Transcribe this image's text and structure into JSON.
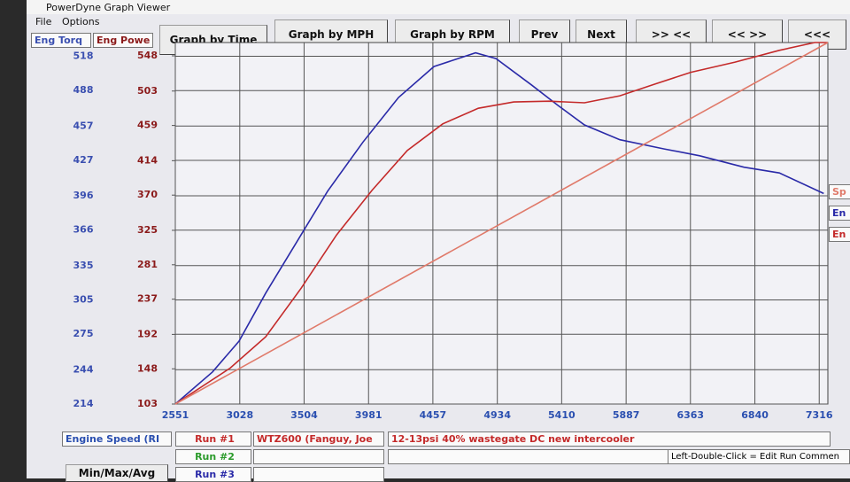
{
  "window": {
    "title": "PowerDyne Graph Viewer",
    "menu": [
      "File",
      "Options"
    ]
  },
  "tabs": [
    "Eng Torq",
    "Eng Powe"
  ],
  "buttons": [
    "Graph by Time",
    "Graph by MPH",
    "Graph by RPM",
    "Prev",
    "Next",
    ">> <<",
    "<< >>",
    "<<<"
  ],
  "side_legend": [
    "Sp",
    "En",
    "En"
  ],
  "footer": {
    "x_channel": "Engine Speed (RI",
    "runs": [
      "Run #1",
      "Run #2",
      "Run #3"
    ],
    "run1_name": "WTZ600 (Fanguy, Joe",
    "run1_comment": "12-13psi 40% wastegate DC new intercooler",
    "stats_button": "Min/Max/Avg",
    "hint": "Left-Double-Click = Edit Run Commen"
  },
  "chart_data": {
    "type": "line",
    "xlim": [
      2551,
      7380
    ],
    "xticks": [
      2551,
      3028,
      3504,
      3981,
      4457,
      4934,
      5410,
      5887,
      6363,
      6840,
      7316
    ],
    "ylim": [
      214,
      530
    ],
    "yticks": [
      214,
      244,
      275,
      305,
      335,
      366,
      396,
      427,
      457,
      488,
      518
    ],
    "y2lim": [
      103,
      565
    ],
    "y2ticks": [
      103,
      148,
      192,
      237,
      281,
      325,
      370,
      414,
      459,
      503,
      548
    ],
    "grid": true,
    "series": [
      {
        "name": "Eng Torq",
        "color": "#2a2aa8",
        "axis": "y",
        "x": [
          2551,
          2826,
          3023,
          3220,
          3482,
          3678,
          3940,
          4203,
          4465,
          4773,
          4924,
          5186,
          5383,
          5579,
          5841,
          6169,
          6431,
          6759,
          7021,
          7349
        ],
        "values": [
          214,
          242,
          269,
          311,
          362,
          400,
          443,
          482,
          509,
          521,
          516,
          493,
          475,
          458,
          445,
          437,
          431,
          421,
          416,
          398
        ]
      },
      {
        "name": "Eng Powe",
        "color": "#c42a2a",
        "axis": "y2",
        "x": [
          2551,
          2957,
          3220,
          3482,
          3744,
          4006,
          4268,
          4530,
          4793,
          5055,
          5317,
          5579,
          5841,
          6103,
          6366,
          6693,
          7021,
          7283,
          7380
        ],
        "values": [
          103,
          149,
          189,
          251,
          319,
          376,
          427,
          461,
          481,
          489,
          490,
          488,
          497,
          512,
          527,
          540,
          555,
          565,
          565
        ]
      },
      {
        "name": "Sp",
        "color": "#e07a6a",
        "axis": "y2",
        "x": [
          2551,
          7380
        ],
        "values": [
          103,
          565
        ]
      }
    ]
  }
}
